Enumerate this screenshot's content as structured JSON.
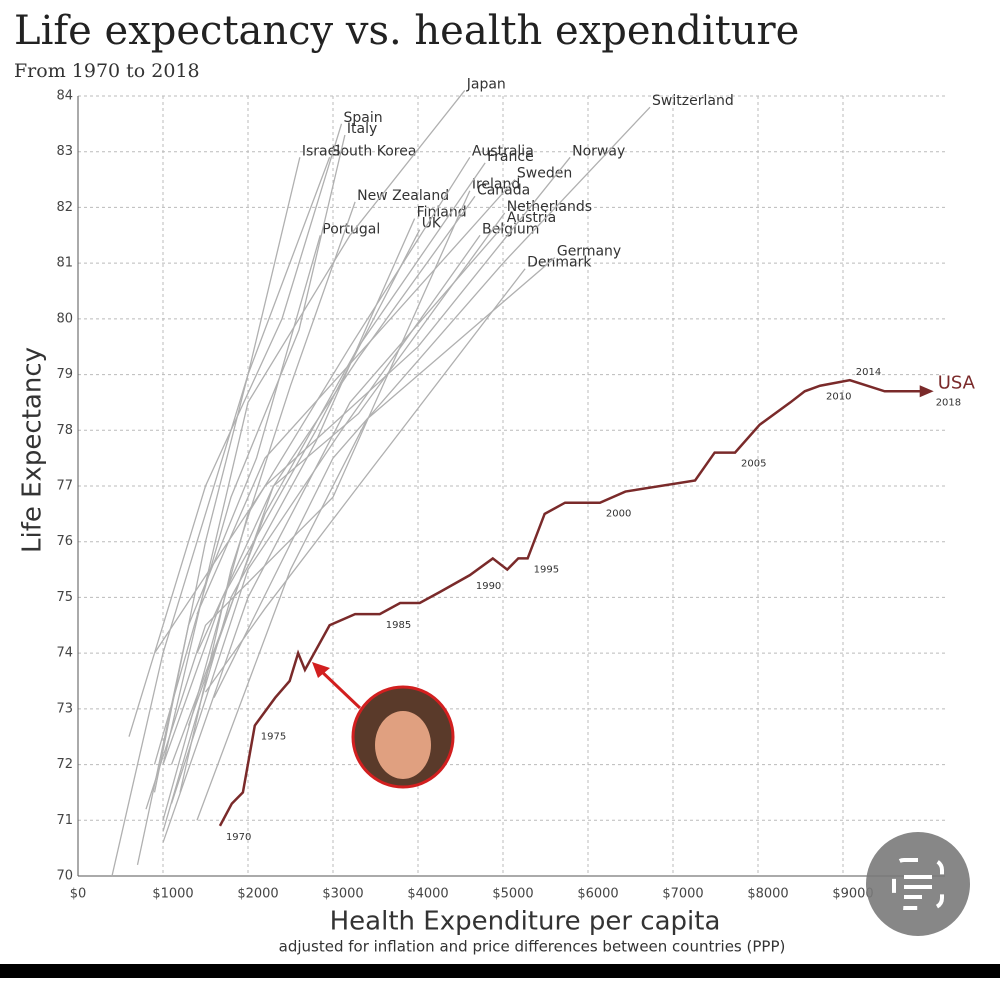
{
  "chart_data": {
    "type": "line",
    "title": "Life expectancy vs. health expenditure",
    "subtitle": "From 1970 to 2018",
    "x_label": "Health Expenditure per capita",
    "x_note": "adjusted for inflation and price differences between countries (PPP)",
    "y_label": "Life Expectancy",
    "xlim": [
      0,
      10200
    ],
    "ylim": [
      70,
      84
    ],
    "xticks": [
      {
        "value": 0,
        "label": "$0"
      },
      {
        "value": 1000,
        "label": "$1000"
      },
      {
        "value": 2000,
        "label": "$2000"
      },
      {
        "value": 3000,
        "label": "$3000"
      },
      {
        "value": 4000,
        "label": "$4000"
      },
      {
        "value": 5000,
        "label": "$5000"
      },
      {
        "value": 6000,
        "label": "$6000"
      },
      {
        "value": 7000,
        "label": "$7000"
      },
      {
        "value": 8000,
        "label": "$8000"
      },
      {
        "value": 9000,
        "label": "$9000"
      }
    ],
    "yticks": [
      70,
      71,
      72,
      73,
      74,
      75,
      76,
      77,
      78,
      79,
      80,
      81,
      82,
      83,
      84
    ],
    "grid": true,
    "series": [
      {
        "name": "USA",
        "color": "#7a2a2a",
        "x": [
          1670,
          1810,
          1940,
          2080,
          2320,
          2490,
          2590,
          2670,
          2960,
          3260,
          3550,
          3790,
          4020,
          4260,
          4610,
          4880,
          5050,
          5180,
          5290,
          5490,
          5730,
          6140,
          6440,
          7260,
          7490,
          7730,
          8020,
          8380,
          8550,
          8730,
          9080,
          9490,
          10020
        ],
        "values": [
          70.9,
          71.3,
          71.5,
          72.7,
          73.2,
          73.5,
          74.0,
          73.7,
          74.5,
          74.7,
          74.7,
          74.9,
          74.9,
          75.1,
          75.4,
          75.7,
          75.5,
          75.7,
          75.7,
          76.5,
          76.7,
          76.7,
          76.9,
          77.1,
          77.6,
          77.6,
          78.1,
          78.5,
          78.7,
          78.8,
          78.9,
          78.7,
          78.7
        ],
        "labels": [
          "1970",
          null,
          null,
          "1975",
          null,
          null,
          null,
          null,
          null,
          null,
          "1985",
          null,
          null,
          null,
          "1990",
          null,
          null,
          null,
          "1995",
          null,
          null,
          "2000",
          null,
          null,
          null,
          "2005",
          null,
          null,
          null,
          "2010",
          "2014",
          null,
          "2018"
        ]
      },
      {
        "name": "Japan",
        "color": "#b0b0b0",
        "x": [
          1000,
          2000,
          3200,
          4550
        ],
        "values": [
          72,
          78.5,
          81.5,
          84.1
        ]
      },
      {
        "name": "Switzerland",
        "color": "#b0b0b0",
        "x": [
          1600,
          3000,
          5000,
          6730
        ],
        "values": [
          73.2,
          77.5,
          81,
          83.8
        ]
      },
      {
        "name": "Spain",
        "color": "#b0b0b0",
        "x": [
          600,
          1500,
          2400,
          3100
        ],
        "values": [
          72.5,
          77,
          80,
          83.5
        ]
      },
      {
        "name": "Italy",
        "color": "#b0b0b0",
        "x": [
          900,
          1800,
          2600,
          3140
        ],
        "values": [
          72,
          76.8,
          79.8,
          83.3
        ]
      },
      {
        "name": "Israel",
        "color": "#b0b0b0",
        "x": [
          900,
          1500,
          2000,
          2610
        ],
        "values": [
          71.5,
          76,
          79,
          82.9
        ]
      },
      {
        "name": "South Korea",
        "color": "#b0b0b0",
        "x": [
          400,
          1000,
          2000,
          2960
        ],
        "values": [
          70,
          74,
          79,
          82.9
        ]
      },
      {
        "name": "Australia",
        "color": "#b0b0b0",
        "x": [
          1000,
          2000,
          3200,
          4610
        ],
        "values": [
          71,
          76.5,
          79.5,
          82.9
        ]
      },
      {
        "name": "France",
        "color": "#b0b0b0",
        "x": [
          1100,
          2200,
          3300,
          4790
        ],
        "values": [
          72,
          76.5,
          79.5,
          82.8
        ]
      },
      {
        "name": "Norway",
        "color": "#b0b0b0",
        "x": [
          900,
          2200,
          4000,
          5790
        ],
        "values": [
          74,
          77,
          79.5,
          82.9
        ]
      },
      {
        "name": "Sweden",
        "color": "#b0b0b0",
        "x": [
          1400,
          2200,
          3500,
          5140
        ],
        "values": [
          74.7,
          77.5,
          79.7,
          82.5
        ]
      },
      {
        "name": "Ireland",
        "color": "#b0b0b0",
        "x": [
          800,
          1500,
          3000,
          4610
        ],
        "values": [
          71.2,
          74.5,
          76.8,
          82.3
        ]
      },
      {
        "name": "Canada",
        "color": "#b0b0b0",
        "x": [
          1300,
          2300,
          3300,
          4670
        ],
        "values": [
          72.7,
          77,
          79.3,
          82.2
        ]
      },
      {
        "name": "New Zealand",
        "color": "#b0b0b0",
        "x": [
          1200,
          1800,
          2500,
          3260
        ],
        "values": [
          71.5,
          75.5,
          78.8,
          82.1
        ]
      },
      {
        "name": "Netherlands",
        "color": "#b0b0b0",
        "x": [
          1400,
          2300,
          3300,
          5020
        ],
        "values": [
          74,
          77,
          78.3,
          81.9
        ]
      },
      {
        "name": "Finland",
        "color": "#b0b0b0",
        "x": [
          1000,
          1800,
          2800,
          3960
        ],
        "values": [
          70.8,
          75,
          77.8,
          81.8
        ]
      },
      {
        "name": "Austria",
        "color": "#b0b0b0",
        "x": [
          1000,
          2000,
          3200,
          5020
        ],
        "values": [
          70.6,
          75,
          78.5,
          81.7
        ]
      },
      {
        "name": "Portugal",
        "color": "#b0b0b0",
        "x": [
          700,
          1300,
          2100,
          2850
        ],
        "values": [
          70.2,
          74.5,
          77.5,
          81.5
        ]
      },
      {
        "name": "Belgium",
        "color": "#b0b0b0",
        "x": [
          1100,
          2000,
          3100,
          4730
        ],
        "values": [
          71.3,
          75.5,
          78,
          81.5
        ]
      },
      {
        "name": "UK",
        "color": "#b0b0b0",
        "x": [
          1000,
          1700,
          2800,
          4020
        ],
        "values": [
          72,
          75,
          78,
          81.6
        ]
      },
      {
        "name": "Germany",
        "color": "#b0b0b0",
        "x": [
          1400,
          2500,
          3400,
          5610
        ],
        "values": [
          71,
          75.5,
          78.2,
          81.1
        ]
      },
      {
        "name": "Denmark",
        "color": "#b0b0b0",
        "x": [
          1500,
          2200,
          3300,
          5260
        ],
        "values": [
          73.3,
          74.8,
          77,
          80.9
        ]
      }
    ]
  }
}
